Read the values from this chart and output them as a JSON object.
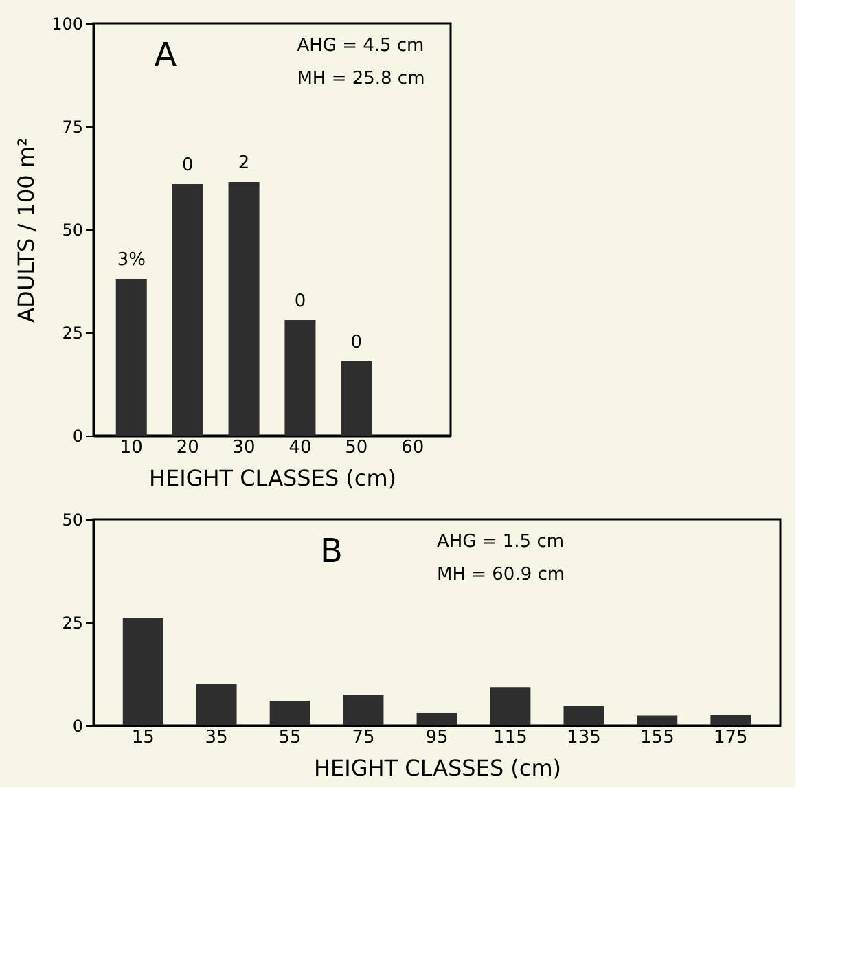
{
  "chart_data": [
    {
      "type": "bar",
      "title": "A",
      "xlabel": "HEIGHT CLASSES (cm)",
      "ylabel": "ADULTS / 100 m²",
      "categories": [
        "10",
        "20",
        "30",
        "40",
        "50",
        "60"
      ],
      "values": [
        38,
        61,
        61.5,
        28,
        18,
        0
      ],
      "color": "#2e2e2e",
      "ylim": [
        0,
        100
      ],
      "yticks": [
        0,
        25,
        50,
        75,
        100
      ],
      "grid": false,
      "annotations": [
        "AHG = 4.5 cm",
        "MH = 25.8 cm",
        {
          "text": "3%",
          "x": "10",
          "y": 38
        },
        {
          "text": "0",
          "x": "20",
          "y": 61
        },
        {
          "text": "2",
          "x": "30",
          "y": 61.5
        },
        {
          "text": "0",
          "x": "40",
          "y": 28
        },
        {
          "text": "0",
          "x": "50",
          "y": 18
        }
      ]
    },
    {
      "type": "bar",
      "title": "B",
      "xlabel": "HEIGHT CLASSES (cm)",
      "categories": [
        "15",
        "35",
        "55",
        "75",
        "95",
        "115",
        "135",
        "155",
        "175"
      ],
      "values": [
        26,
        10,
        6,
        7.5,
        3,
        9.3,
        4.7,
        2.4,
        2.5
      ],
      "color": "#2e2e2e",
      "ylim": [
        0,
        50
      ],
      "yticks": [
        0,
        25,
        50
      ],
      "grid": false,
      "annotations": [
        "AHG = 1.5 cm",
        "MH = 60.9 cm"
      ]
    }
  ]
}
